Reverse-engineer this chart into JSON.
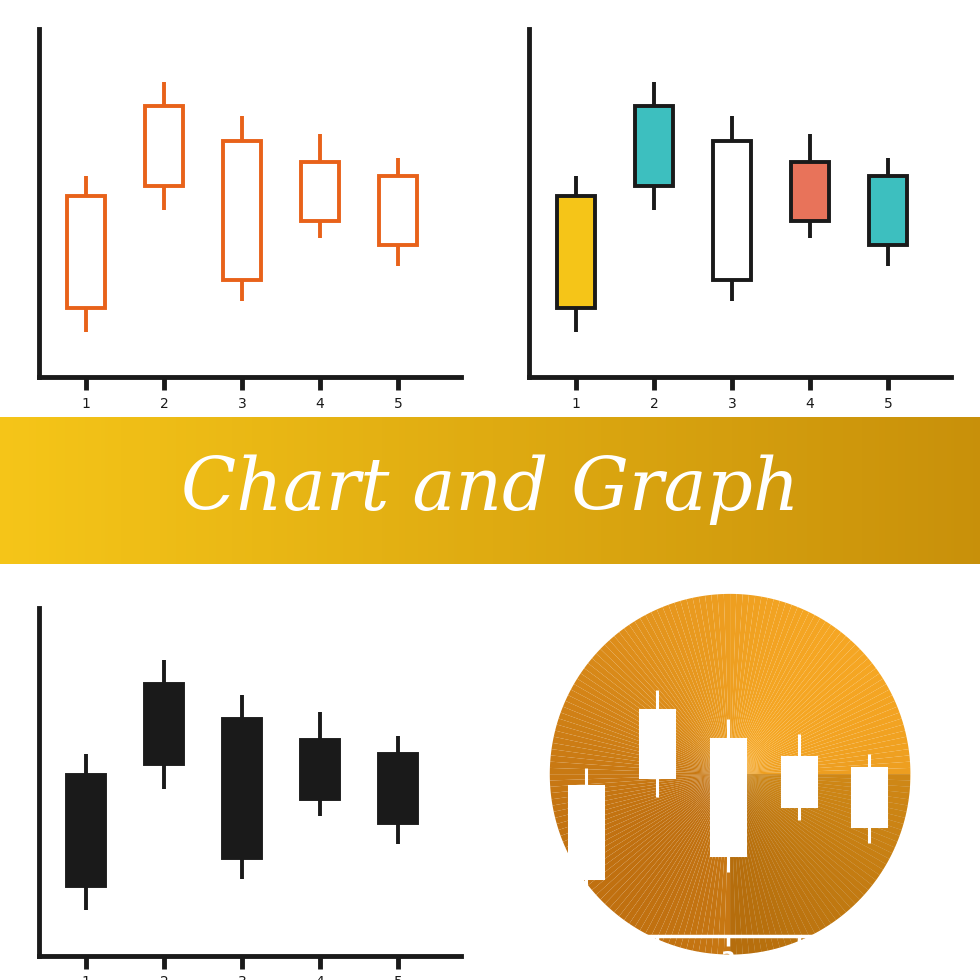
{
  "bg_color": "#ffffff",
  "banner_color_left": "#F5C518",
  "banner_color_right": "#C8900A",
  "banner_text": "Chart and Graph",
  "banner_text_color": "#ffffff",
  "circle_color_light": "#F5A623",
  "circle_color_dark": "#C07010",
  "candles": [
    {
      "x": 1,
      "open": 2.0,
      "close": 5.2,
      "high": 5.8,
      "low": 1.3
    },
    {
      "x": 2,
      "open": 5.5,
      "close": 7.8,
      "high": 8.5,
      "low": 4.8
    },
    {
      "x": 3,
      "open": 2.8,
      "close": 6.8,
      "high": 7.5,
      "low": 2.2
    },
    {
      "x": 4,
      "open": 4.5,
      "close": 6.2,
      "high": 7.0,
      "low": 4.0
    },
    {
      "x": 5,
      "open": 3.8,
      "close": 5.8,
      "high": 6.3,
      "low": 3.2
    }
  ],
  "color_fills": [
    "#F5C518",
    "#3DBFBF",
    "#ffffff",
    "#E8735A",
    "#3DBFBF"
  ],
  "orange_color": "#E8621A",
  "dark_color": "#1A1A1A",
  "axis_linewidth": 3.5,
  "candle_linewidth": 2.8,
  "xtick_labels": [
    "1",
    "2",
    "3",
    "4",
    "5"
  ],
  "fig_width": 9.8,
  "fig_height": 9.8,
  "fig_dpi": 100
}
